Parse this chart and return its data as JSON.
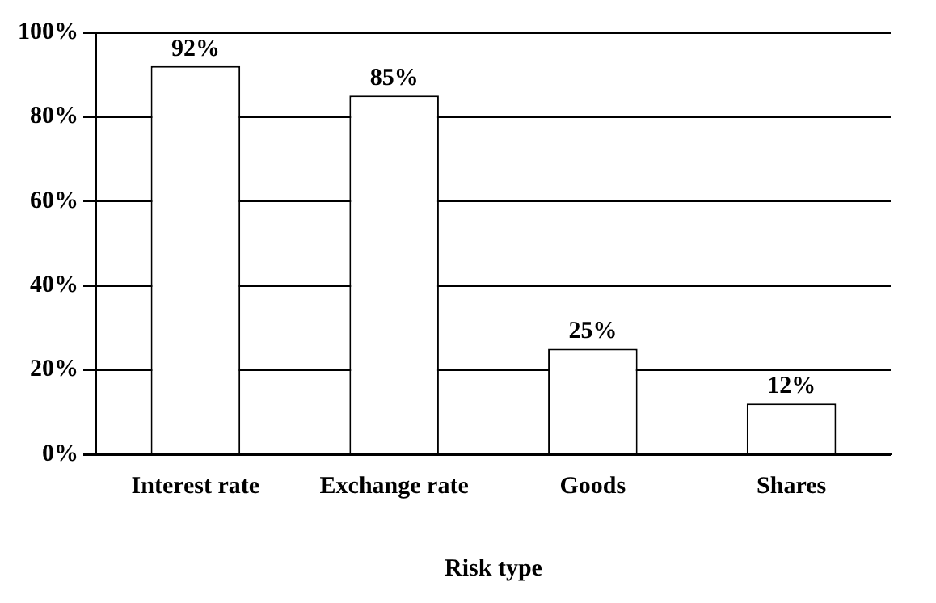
{
  "chart_data": {
    "type": "bar",
    "xlabel": "Risk type",
    "categories": [
      "Interest rate",
      "Exchange rate",
      "Goods",
      "Shares"
    ],
    "values": [
      92,
      85,
      25,
      12
    ],
    "value_labels": [
      "92%",
      "85%",
      "25%",
      "12%"
    ],
    "color": "#ffffff",
    "ylim": [
      0,
      100
    ],
    "yticks": [
      {
        "value": 0,
        "label": "0%"
      },
      {
        "value": 20,
        "label": "20%"
      },
      {
        "value": 40,
        "label": "40%"
      },
      {
        "value": 60,
        "label": "60%"
      },
      {
        "value": 80,
        "label": "80%"
      },
      {
        "value": 100,
        "label": "100%"
      }
    ],
    "grid": "y",
    "legend": false
  }
}
